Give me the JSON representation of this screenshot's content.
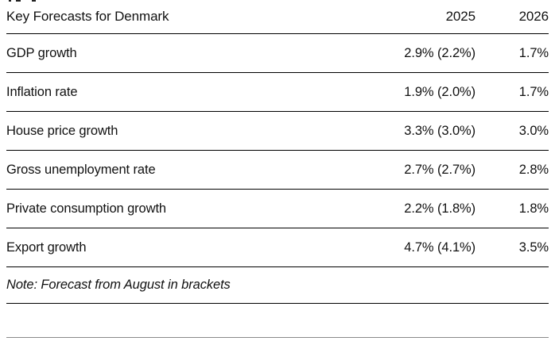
{
  "chart_data": {
    "type": "table",
    "title": "Key Forecasts for Denmark",
    "columns": [
      "2025",
      "2026"
    ],
    "rows": [
      {
        "label": "GDP growth",
        "values": [
          "2.9% (2.2%)",
          "1.7%"
        ]
      },
      {
        "label": "Inflation rate",
        "values": [
          "1.9% (2.0%)",
          "1.7%"
        ]
      },
      {
        "label": "House price growth",
        "values": [
          "3.3% (3.0%)",
          "3.0%"
        ]
      },
      {
        "label": "Gross unemployment rate",
        "values": [
          "2.7% (2.7%)",
          "2.8%"
        ]
      },
      {
        "label": "Private consumption growth",
        "values": [
          "2.2% (1.8%)",
          "1.8%"
        ]
      },
      {
        "label": "Export growth",
        "values": [
          "4.7% (4.1%)",
          "3.5%"
        ]
      }
    ],
    "note": "Note: Forecast from August in brackets",
    "layout": {
      "value_alignment": "right",
      "grid": "horizontal-rules-only",
      "bottom_rule_color": "#8a8a8a",
      "rule_color": "#000000"
    }
  },
  "colors": {
    "text": "#111111",
    "rule_black": "#000000",
    "rule_gray": "#8a8a8a",
    "background": "#ffffff"
  }
}
